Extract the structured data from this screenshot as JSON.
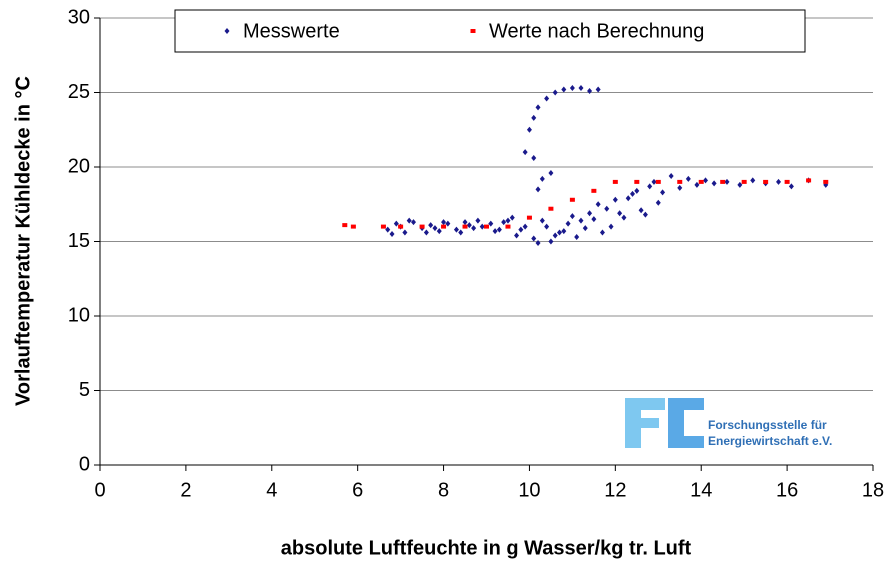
{
  "chart_data": {
    "type": "scatter",
    "xlabel": "absolute Luftfeuchte in g Wasser/kg tr. Luft",
    "ylabel": "Vorlauftemperatur Kühldecke in °C",
    "xlim": [
      0,
      18
    ],
    "xticks": [
      0,
      2,
      4,
      6,
      8,
      10,
      12,
      14,
      16,
      18
    ],
    "ylim": [
      0,
      30
    ],
    "yticks": [
      0,
      5,
      10,
      15,
      20,
      25,
      30
    ],
    "grid": true,
    "legend": "top",
    "annotations": [
      "Forschungsstelle für",
      "Energiewirtschaft e.V."
    ],
    "series": [
      {
        "name": "Messwerte",
        "color": "#1a1a8c",
        "marker": "diamond",
        "x": [
          6.7,
          6.9,
          7.1,
          7.3,
          7.5,
          7.7,
          7.9,
          8.1,
          8.3,
          8.5,
          8.7,
          8.9,
          9.1,
          9.3,
          9.5,
          6.8,
          7.2,
          7.6,
          8.0,
          8.4,
          8.8,
          9.2,
          9.6,
          7.0,
          7.8,
          8.6,
          9.4,
          9.7,
          9.9,
          10.1,
          10.3,
          10.5,
          10.7,
          10.9,
          11.1,
          11.3,
          11.5,
          11.7,
          11.9,
          9.8,
          10.2,
          10.6,
          11.0,
          11.4,
          11.8,
          10.4,
          10.8,
          11.2,
          11.6,
          12.0,
          12.2,
          12.4,
          12.6,
          12.8,
          13.0,
          12.1,
          12.3,
          12.5,
          12.7,
          12.9,
          13.1,
          13.3,
          13.5,
          13.7,
          13.9,
          14.1,
          14.3,
          14.6,
          14.9,
          15.2,
          15.5,
          15.8,
          16.1,
          16.5,
          16.9,
          9.9,
          10.0,
          10.1,
          10.2,
          10.4,
          10.6,
          10.8,
          11.0,
          11.2,
          11.4,
          11.6,
          10.1,
          10.3,
          10.5,
          10.2
        ],
        "y": [
          15.8,
          16.2,
          15.6,
          16.3,
          15.9,
          16.1,
          15.7,
          16.2,
          15.8,
          16.3,
          15.9,
          16.0,
          16.2,
          15.8,
          16.4,
          15.5,
          16.4,
          15.6,
          16.3,
          15.6,
          16.4,
          15.7,
          16.6,
          16.0,
          15.9,
          16.1,
          16.3,
          15.4,
          16.0,
          15.2,
          16.4,
          15.0,
          15.6,
          16.2,
          15.3,
          15.9,
          16.5,
          15.6,
          16.0,
          15.8,
          14.9,
          15.4,
          16.7,
          16.9,
          17.2,
          16.0,
          15.7,
          16.4,
          17.5,
          17.8,
          16.6,
          18.2,
          17.1,
          18.7,
          17.6,
          16.9,
          17.9,
          18.4,
          16.8,
          19.0,
          18.3,
          19.4,
          18.6,
          19.2,
          18.8,
          19.1,
          18.9,
          19.0,
          18.8,
          19.1,
          18.9,
          19.0,
          18.7,
          19.1,
          18.8,
          21.0,
          22.5,
          23.3,
          24.0,
          24.6,
          25.0,
          25.2,
          25.3,
          25.3,
          25.1,
          25.2,
          20.6,
          19.2,
          19.6,
          18.5
        ]
      },
      {
        "name": "Werte nach Berechnung",
        "color": "#ff0000",
        "marker": "square",
        "x": [
          5.7,
          5.9,
          6.6,
          7.0,
          7.5,
          8.0,
          8.5,
          9.0,
          9.5,
          10.0,
          10.5,
          11.0,
          11.5,
          12.0,
          12.5,
          13.0,
          13.5,
          14.0,
          14.5,
          15.0,
          15.5,
          16.0,
          16.5,
          16.9
        ],
        "y": [
          16.1,
          16.0,
          16.0,
          16.0,
          16.0,
          16.0,
          16.0,
          16.0,
          16.0,
          16.6,
          17.2,
          17.8,
          18.4,
          19.0,
          19.0,
          19.0,
          19.0,
          19.0,
          19.0,
          19.0,
          19.0,
          19.0,
          19.1,
          19.0
        ]
      }
    ]
  }
}
